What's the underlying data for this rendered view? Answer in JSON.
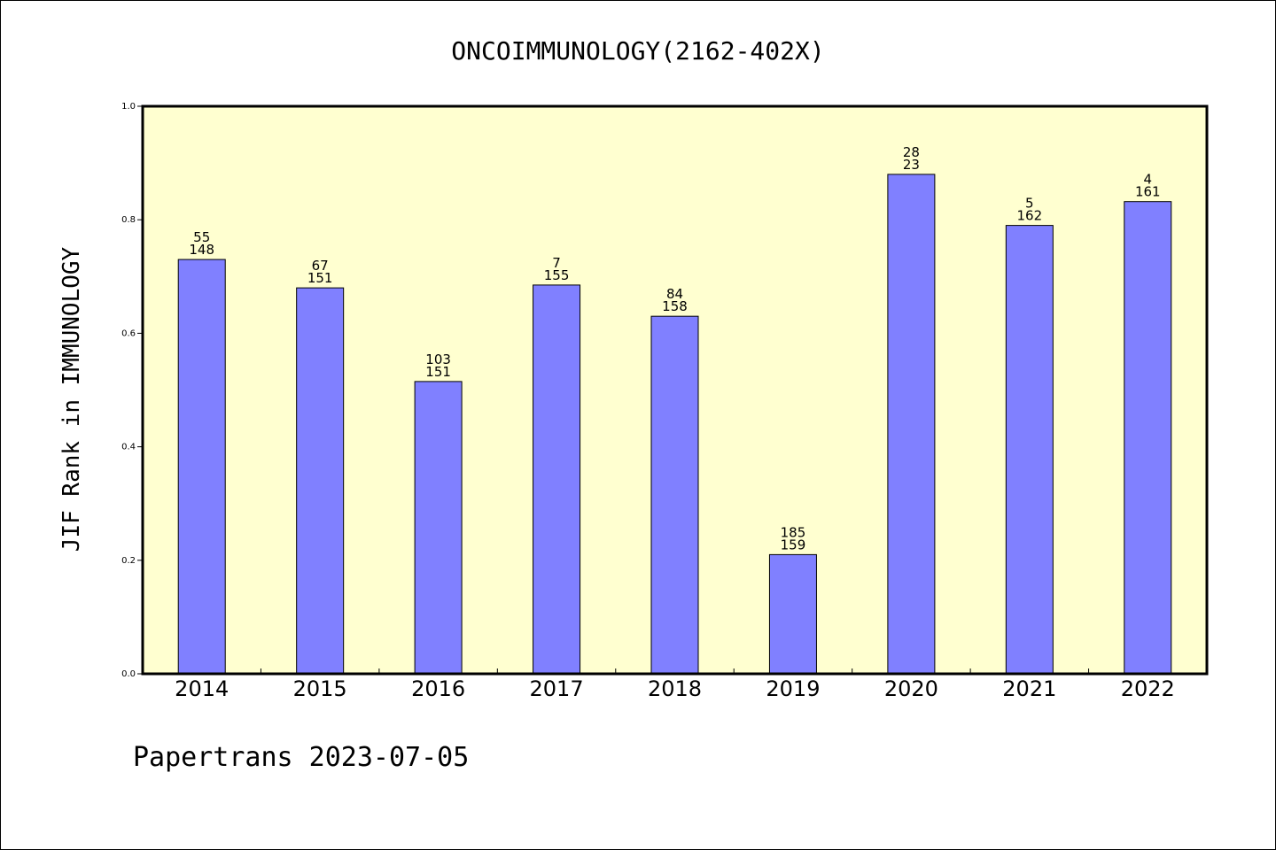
{
  "chart_data": {
    "type": "bar",
    "title": "ONCOIMMUNOLOGY(2162-402X)",
    "ylabel": "JIF Rank in IMMUNOLOGY",
    "xlabel": "",
    "ylim": [
      0.0,
      1.0
    ],
    "yticks": [
      "0.0",
      "0.2",
      "0.4",
      "0.6",
      "0.8",
      "1.0"
    ],
    "categories": [
      "2014",
      "2015",
      "2016",
      "2017",
      "2018",
      "2019",
      "2020",
      "2021",
      "2022"
    ],
    "values": [
      0.73,
      0.68,
      0.515,
      0.685,
      0.63,
      0.21,
      0.88,
      0.79,
      0.832
    ],
    "labels_top": [
      "55",
      "67",
      "103",
      "7",
      "84",
      "185",
      "28",
      "5",
      "4"
    ],
    "labels_bottom": [
      "148",
      "151",
      "151",
      "155",
      "158",
      "159",
      "23",
      "162",
      "161"
    ],
    "bar_color": "#8080ff",
    "plot_background": "#ffffd0",
    "grid": false
  },
  "footer": "Papertrans 2023-07-05"
}
